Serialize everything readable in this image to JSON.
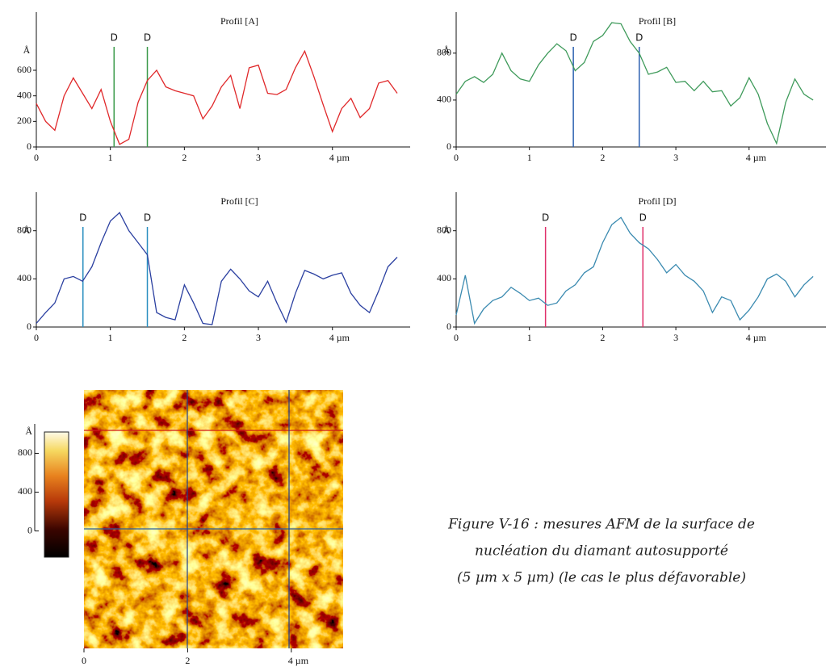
{
  "chart_data": [
    {
      "type": "line",
      "title": "Profil [A]",
      "ylabel": "Å",
      "color": "#e0282a",
      "marker_color": "#3a9a4a",
      "x": [
        0,
        0.125,
        0.25,
        0.375,
        0.5,
        0.625,
        0.75,
        0.875,
        1,
        1.125,
        1.25,
        1.375,
        1.5,
        1.625,
        1.75,
        1.875,
        2,
        2.125,
        2.25,
        2.375,
        2.5,
        2.625,
        2.75,
        2.875,
        3,
        3.125,
        3.25,
        3.375,
        3.5,
        3.625,
        3.75,
        3.875,
        4,
        4.125,
        4.25,
        4.375,
        4.5,
        4.625,
        4.75,
        4.875
      ],
      "values": [
        340,
        200,
        130,
        400,
        540,
        420,
        300,
        450,
        200,
        20,
        60,
        350,
        520,
        600,
        470,
        440,
        420,
        400,
        220,
        320,
        470,
        560,
        300,
        620,
        640,
        420,
        410,
        450,
        620,
        750,
        550,
        330,
        120,
        300,
        380,
        230,
        300,
        500,
        520,
        420
      ],
      "markers": [
        {
          "x": 1.05,
          "label": "D"
        },
        {
          "x": 1.5,
          "label": "D"
        }
      ],
      "xlim": [
        0,
        5.05
      ],
      "xticks": [
        0,
        1,
        2,
        3,
        {
          "value": 4,
          "label": "4 µm"
        }
      ],
      "ylim": [
        0,
        1055
      ],
      "yticks": [
        0,
        200,
        400,
        600
      ]
    },
    {
      "type": "line",
      "title": "Profil [B]",
      "ylabel": "Å",
      "color": "#3e9a5a",
      "marker_color": "#2a5fb0",
      "x": [
        0,
        0.125,
        0.25,
        0.375,
        0.5,
        0.625,
        0.75,
        0.875,
        1,
        1.125,
        1.25,
        1.375,
        1.5,
        1.625,
        1.75,
        1.875,
        2,
        2.125,
        2.25,
        2.375,
        2.5,
        2.625,
        2.75,
        2.875,
        3,
        3.125,
        3.25,
        3.375,
        3.5,
        3.625,
        3.75,
        3.875,
        4,
        4.125,
        4.25,
        4.375,
        4.5,
        4.625,
        4.75,
        4.875
      ],
      "values": [
        450,
        560,
        600,
        550,
        620,
        800,
        650,
        580,
        560,
        700,
        800,
        880,
        820,
        650,
        720,
        900,
        950,
        1060,
        1050,
        900,
        800,
        620,
        640,
        680,
        550,
        560,
        480,
        560,
        470,
        480,
        350,
        420,
        590,
        450,
        200,
        30,
        380,
        580,
        450,
        400
      ],
      "markers": [
        {
          "x": 1.6,
          "label": "D"
        },
        {
          "x": 2.5,
          "label": "D"
        }
      ],
      "xlim": [
        0,
        5.05
      ],
      "xticks": [
        0,
        1,
        2,
        3,
        {
          "value": 4,
          "label": "4 µm"
        }
      ],
      "ylim": [
        0,
        1150
      ],
      "yticks": [
        0,
        400,
        800
      ]
    },
    {
      "type": "line",
      "title": "Profil [C]",
      "ylabel": "Å",
      "color": "#2a3fa0",
      "marker_color": "#2a8fc0",
      "x": [
        0,
        0.125,
        0.25,
        0.375,
        0.5,
        0.625,
        0.75,
        0.875,
        1,
        1.125,
        1.25,
        1.375,
        1.5,
        1.625,
        1.75,
        1.875,
        2,
        2.125,
        2.25,
        2.375,
        2.5,
        2.625,
        2.75,
        2.875,
        3,
        3.125,
        3.25,
        3.375,
        3.5,
        3.625,
        3.75,
        3.875,
        4,
        4.125,
        4.25,
        4.375,
        4.5,
        4.625,
        4.75,
        4.875
      ],
      "values": [
        30,
        120,
        200,
        400,
        420,
        380,
        500,
        700,
        880,
        950,
        800,
        700,
        600,
        120,
        80,
        60,
        350,
        200,
        30,
        20,
        380,
        480,
        400,
        300,
        250,
        380,
        200,
        40,
        280,
        470,
        440,
        400,
        430,
        450,
        280,
        180,
        120,
        300,
        500,
        580
      ],
      "markers": [
        {
          "x": 0.63,
          "label": "D"
        },
        {
          "x": 1.5,
          "label": "D"
        }
      ],
      "xlim": [
        0,
        5.05
      ],
      "xticks": [
        0,
        1,
        2,
        3,
        {
          "value": 4,
          "label": "4 µm"
        }
      ],
      "ylim": [
        0,
        1120
      ],
      "yticks": [
        0,
        400,
        800
      ]
    },
    {
      "type": "line",
      "title": "Profil [D]",
      "ylabel": "Å",
      "color": "#3a8ab0",
      "marker_color": "#e0306a",
      "x": [
        0,
        0.125,
        0.25,
        0.375,
        0.5,
        0.625,
        0.75,
        0.875,
        1,
        1.125,
        1.25,
        1.375,
        1.5,
        1.625,
        1.75,
        1.875,
        2,
        2.125,
        2.25,
        2.375,
        2.5,
        2.625,
        2.75,
        2.875,
        3,
        3.125,
        3.25,
        3.375,
        3.5,
        3.625,
        3.75,
        3.875,
        4,
        4.125,
        4.25,
        4.375,
        4.5,
        4.625,
        4.75,
        4.875
      ],
      "values": [
        100,
        430,
        30,
        150,
        220,
        250,
        330,
        280,
        220,
        240,
        180,
        200,
        300,
        350,
        450,
        500,
        700,
        850,
        910,
        780,
        700,
        650,
        560,
        450,
        520,
        430,
        380,
        300,
        120,
        250,
        220,
        60,
        140,
        250,
        400,
        440,
        380,
        250,
        350,
        420
      ],
      "markers": [
        {
          "x": 1.22,
          "label": "D"
        },
        {
          "x": 2.55,
          "label": "D"
        }
      ],
      "xlim": [
        0,
        5.05
      ],
      "xticks": [
        0,
        1,
        2,
        3,
        {
          "value": 4,
          "label": "4 µm"
        }
      ],
      "ylim": [
        0,
        1120
      ],
      "yticks": [
        0,
        400,
        800
      ]
    },
    {
      "type": "image",
      "colorbar_label": "Å",
      "colorbar_lim": [
        -270,
        1020
      ],
      "colorbar_ticks": [
        0,
        400,
        800
      ],
      "xlim": [
        0,
        5
      ],
      "xticks": [
        0,
        2,
        {
          "value": 4,
          "label": "4 µm"
        }
      ]
    }
  ],
  "caption": [
    "Figure V-16 : mesures AFM de la surface de",
    "nucléation du diamant autosupporté",
    "(5 µm x 5 µm) (le cas le plus défavorable)"
  ]
}
